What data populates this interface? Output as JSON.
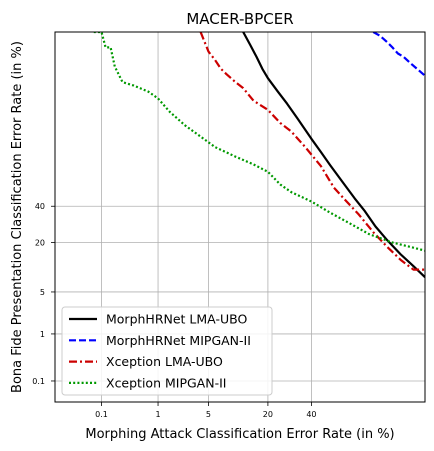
{
  "chart_data": {
    "type": "line",
    "title": "MACER-BPCER",
    "xlabel": "Morphing Attack Classification Error Rate (in %)",
    "ylabel": "Bona Fide Presentation Classification Error Rate (in %)",
    "x_scale": "probit",
    "y_scale": "probit",
    "xlim": [
      0.01,
      90
    ],
    "ylim": [
      0.03,
      99.5
    ],
    "x_ticks": [
      0.1,
      1,
      5,
      20,
      40
    ],
    "x_tick_labels": [
      "0.1",
      "1",
      "5",
      "20",
      "40"
    ],
    "y_ticks": [
      0.1,
      1,
      5,
      20,
      40
    ],
    "y_tick_labels": [
      "0.1",
      "1",
      "5",
      "20",
      "40"
    ],
    "grid": true,
    "legend_position": "lower-left",
    "series": [
      {
        "name": "MorphHRNet LMA-UBO",
        "color": "#000000",
        "dash": "solid",
        "x": [
          12,
          14,
          16,
          18,
          20,
          24,
          28,
          33,
          40,
          45,
          50,
          57,
          63,
          68,
          73,
          78,
          83,
          87,
          90
        ],
        "y": [
          99.5,
          99.1,
          98.5,
          97.6,
          96.6,
          94.6,
          92.1,
          87.9,
          80.0,
          73.5,
          66,
          55,
          45,
          37,
          28,
          21,
          15,
          11,
          8
        ]
      },
      {
        "name": "MorphHRNet MIPGAN-II",
        "color": "#0000ff",
        "dash": "dashed",
        "x": [
          72,
          75,
          78,
          80,
          82,
          84,
          86,
          88,
          90
        ],
        "y": [
          99.5,
          99.4,
          99.2,
          99.0,
          98.7,
          98.5,
          98.1,
          97.6,
          96.9
        ]
      },
      {
        "name": "Xception LMA-UBO",
        "color": "#cc0000",
        "dash": "dashdot",
        "x": [
          4,
          5,
          6,
          7,
          8,
          10,
          12,
          15,
          20,
          25,
          30,
          37,
          45,
          52,
          58,
          65,
          72,
          78,
          83,
          87,
          90
        ],
        "y": [
          99.5,
          98.8,
          98.3,
          97.6,
          97.1,
          96.1,
          95.2,
          92.8,
          90.5,
          86.4,
          83.1,
          75.8,
          65.5,
          52,
          44,
          35,
          25,
          18,
          13,
          10,
          10
        ]
      },
      {
        "name": "Xception MIPGAN-II",
        "color": "#009900",
        "dash": "dotted",
        "x": [
          0.07,
          0.1,
          0.12,
          0.15,
          0.18,
          0.25,
          0.4,
          0.7,
          1,
          1.5,
          2.5,
          4,
          6,
          10,
          15,
          20,
          25,
          30,
          40,
          50,
          60,
          70,
          80,
          90
        ],
        "y": [
          99.5,
          99.5,
          99.0,
          99.0,
          97.8,
          96.1,
          95.6,
          94.6,
          93.3,
          90.0,
          85.5,
          81,
          76,
          71,
          66.5,
          62,
          54,
          49,
          43,
          36,
          30,
          24,
          20,
          16.5
        ]
      }
    ]
  }
}
